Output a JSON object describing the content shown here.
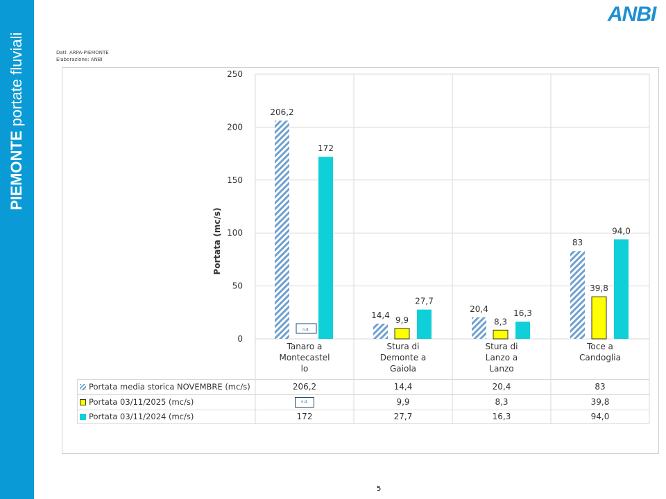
{
  "sidebar": {
    "title_bold": "PIEMONTE",
    "title_rest": " portate fluviali"
  },
  "logo": "ANBI",
  "source": {
    "line1": "Dati: ARPA-PIEMONTE",
    "line2": "Elaborazione: ANBI"
  },
  "page_number": "5",
  "nd_label": "n.d.",
  "colors": {
    "historic": "#6fa0d0",
    "y2025": "#ffff00",
    "y2024": "#0fd0d8",
    "sidebar": "#0a9bd6"
  },
  "chart_data": {
    "type": "bar",
    "ylabel": "Portata (mc/s)",
    "ylim": [
      0,
      250
    ],
    "yticks": [
      0,
      50,
      100,
      150,
      200,
      250
    ],
    "grid": true,
    "categories": [
      "Tanaro a Montecastello",
      "Stura di Demonte a Gaiola",
      "Stura di Lanzo a Lanzo",
      "Toce a Candoglia"
    ],
    "category_lines": [
      [
        "Tanaro a",
        "Montecastel",
        "lo"
      ],
      [
        "Stura di",
        "Demonte a",
        "Gaiola"
      ],
      [
        "Stura di",
        "Lanzo a",
        "Lanzo"
      ],
      [
        "Toce a",
        "Candoglia"
      ]
    ],
    "series": [
      {
        "name": "Portata media storica NOVEMBRE (mc/s)",
        "values": [
          206.2,
          14.4,
          20.4,
          83
        ],
        "labels": [
          "206,2",
          "14,4",
          "20,4",
          "83"
        ],
        "style": "hatched"
      },
      {
        "name": "Portata 03/11/2025 (mc/s)",
        "values": [
          null,
          9.9,
          8.3,
          39.8
        ],
        "labels": [
          "n.d.",
          "9,9",
          "8,3",
          "39,8"
        ],
        "style": "yellow"
      },
      {
        "name": "Portata 03/11/2024 (mc/s)",
        "values": [
          172,
          27.7,
          16.3,
          94.0
        ],
        "labels": [
          "172",
          "27,7",
          "16,3",
          "94,0"
        ],
        "style": "cyan"
      }
    ]
  }
}
